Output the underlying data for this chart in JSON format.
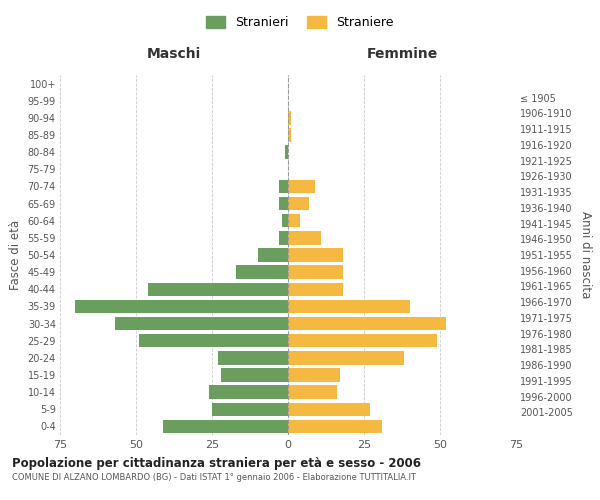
{
  "age_groups": [
    "0-4",
    "5-9",
    "10-14",
    "15-19",
    "20-24",
    "25-29",
    "30-34",
    "35-39",
    "40-44",
    "45-49",
    "50-54",
    "55-59",
    "60-64",
    "65-69",
    "70-74",
    "75-79",
    "80-84",
    "85-89",
    "90-94",
    "95-99",
    "100+"
  ],
  "birth_years": [
    "2001-2005",
    "1996-2000",
    "1991-1995",
    "1986-1990",
    "1981-1985",
    "1976-1980",
    "1971-1975",
    "1966-1970",
    "1961-1965",
    "1956-1960",
    "1951-1955",
    "1946-1950",
    "1941-1945",
    "1936-1940",
    "1931-1935",
    "1926-1930",
    "1921-1925",
    "1916-1920",
    "1911-1915",
    "1906-1910",
    "≤ 1905"
  ],
  "maschi": [
    41,
    25,
    26,
    22,
    23,
    49,
    57,
    70,
    46,
    17,
    10,
    3,
    2,
    3,
    3,
    0,
    1,
    0,
    0,
    0,
    0
  ],
  "femmine": [
    31,
    27,
    16,
    17,
    38,
    49,
    52,
    40,
    18,
    18,
    18,
    11,
    4,
    7,
    9,
    0,
    0,
    1,
    1,
    0,
    0
  ],
  "color_maschi": "#6a9e5e",
  "color_femmine": "#f5b942",
  "title": "Popolazione per cittadinanza straniera per età e sesso - 2006",
  "subtitle": "COMUNE DI ALZANO LOMBARDO (BG) - Dati ISTAT 1° gennaio 2006 - Elaborazione TUTTITALIA.IT",
  "xlabel_left": "Maschi",
  "xlabel_right": "Femmine",
  "ylabel_left": "Fasce di età",
  "ylabel_right": "Anni di nascita",
  "legend_maschi": "Stranieri",
  "legend_femmine": "Straniere",
  "xlim": 75,
  "background_color": "#ffffff",
  "grid_color": "#cccccc"
}
